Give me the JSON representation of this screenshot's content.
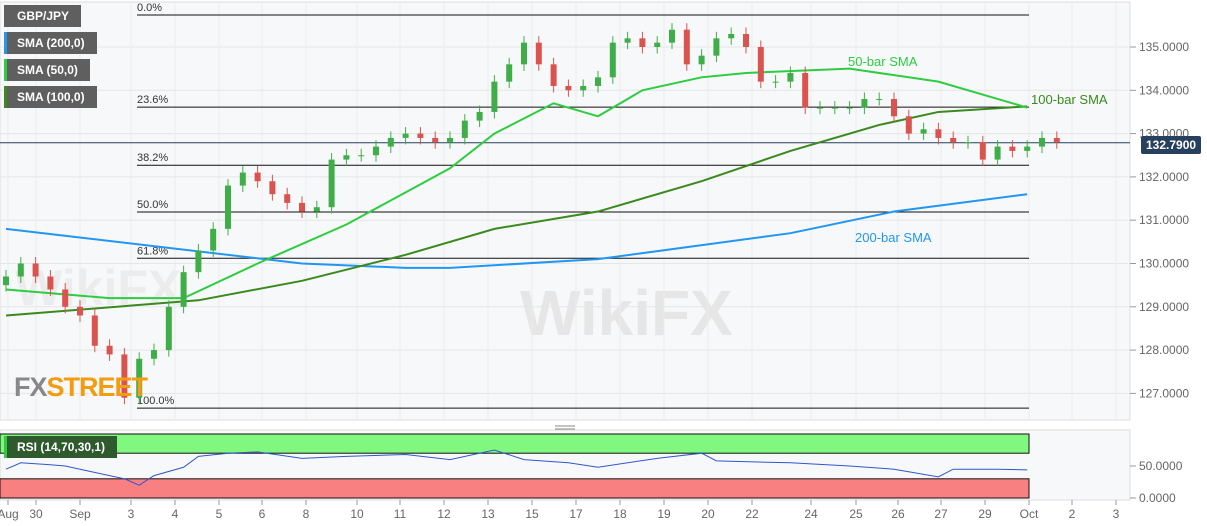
{
  "legend": [
    {
      "label": "GBP/JPY",
      "color": "#5f5f5f"
    },
    {
      "label": "SMA (200,0)",
      "color": "#2196f3"
    },
    {
      "label": "SMA (50,0)",
      "color": "#2ecc40"
    },
    {
      "label": "SMA (100,0)",
      "color": "#3a8a1e"
    }
  ],
  "rsi_label": "RSI (14,70,30,1)",
  "logo": "FXSTREET",
  "logo_parts": {
    "a": "FX",
    "b": "STREET"
  },
  "watermark": "WikiFX",
  "current_price": "132.7900",
  "annotations": {
    "sma50": "50-bar SMA",
    "sma100": "100-bar SMA",
    "sma200": "200-bar SMA"
  },
  "colors": {
    "up": "#3fae49",
    "down": "#d9534f",
    "sma200": "#2196f3",
    "sma50": "#2ecc40",
    "sma100": "#3a8a1e",
    "rsi": "#3355cc",
    "overbought": "#80f880",
    "oversold": "#f88080",
    "price_badge": "#27405f"
  },
  "chart_data": {
    "type": "candlestick",
    "title": "GBP/JPY",
    "ylim": [
      126.4,
      135.9
    ],
    "y_ticks": [
      "135.0000",
      "134.0000",
      "133.0000",
      "132.0000",
      "131.0000",
      "130.0000",
      "129.0000",
      "128.0000",
      "127.0000"
    ],
    "y_tick_values": [
      135,
      134,
      133,
      132,
      131,
      130,
      129,
      128,
      127
    ],
    "x_ticks": [
      "Aug",
      "30",
      "Sep",
      "3",
      "4",
      "5",
      "6",
      "8",
      "10",
      "11",
      "12",
      "13",
      "15",
      "17",
      "18",
      "19",
      "20",
      "22",
      "24",
      "25",
      "26",
      "27",
      "29",
      "Oct",
      "2",
      "3"
    ],
    "close": [
      129.7,
      130.0,
      129.7,
      129.4,
      129.0,
      128.8,
      128.1,
      127.9,
      126.9,
      127.8,
      128.0,
      129.0,
      129.8,
      130.3,
      130.8,
      131.8,
      132.1,
      131.9,
      131.6,
      131.4,
      131.2,
      131.3,
      132.4,
      132.5,
      132.5,
      132.7,
      132.9,
      133.0,
      132.9,
      132.8,
      132.9,
      133.3,
      133.5,
      134.2,
      134.6,
      135.1,
      134.6,
      134.1,
      134.0,
      134.1,
      134.3,
      135.1,
      135.2,
      135.0,
      135.1,
      135.4,
      134.6,
      134.8,
      135.2,
      135.3,
      135.0,
      134.2,
      134.2,
      134.4,
      133.6,
      133.6,
      133.6,
      133.6,
      133.8,
      133.8,
      133.4,
      133.0,
      133.1,
      132.9,
      132.8,
      132.8,
      132.4,
      132.7,
      132.6,
      132.7,
      132.9,
      132.8
    ],
    "fibonacci": [
      {
        "label": "0.0%",
        "price": 135.74
      },
      {
        "label": "23.6%",
        "price": 133.61
      },
      {
        "label": "38.2%",
        "price": 132.27
      },
      {
        "label": "50.0%",
        "price": 131.19
      },
      {
        "label": "61.8%",
        "price": 130.12
      },
      {
        "label": "100.0%",
        "price": 126.66
      }
    ],
    "sma200": [
      [
        0,
        130.8
      ],
      [
        20,
        130.0
      ],
      [
        27,
        129.9
      ],
      [
        30,
        129.9
      ],
      [
        40,
        130.1
      ],
      [
        53,
        130.7
      ],
      [
        60,
        131.2
      ],
      [
        69,
        131.6
      ]
    ],
    "sma50": [
      [
        0,
        129.4
      ],
      [
        7,
        129.2
      ],
      [
        12,
        129.2
      ],
      [
        17,
        130.0
      ],
      [
        23,
        130.9
      ],
      [
        30,
        132.2
      ],
      [
        33,
        133.0
      ],
      [
        37,
        133.7
      ],
      [
        40,
        133.4
      ],
      [
        43,
        134.0
      ],
      [
        47,
        134.3
      ],
      [
        50,
        134.4
      ],
      [
        57,
        134.5
      ],
      [
        63,
        134.2
      ],
      [
        69,
        133.6
      ]
    ],
    "sma100": [
      [
        0,
        128.8
      ],
      [
        13,
        129.15
      ],
      [
        20,
        129.6
      ],
      [
        27,
        130.2
      ],
      [
        33,
        130.8
      ],
      [
        40,
        131.2
      ],
      [
        47,
        131.9
      ],
      [
        53,
        132.6
      ],
      [
        59,
        133.2
      ],
      [
        63,
        133.5
      ],
      [
        69,
        133.63
      ]
    ],
    "rsi": {
      "ylim": [
        0,
        100
      ],
      "levels": [
        70,
        30
      ],
      "y_ticks": [
        "50.0000",
        "0.0000"
      ],
      "values": [
        [
          0,
          45
        ],
        [
          1,
          55
        ],
        [
          3,
          52
        ],
        [
          4,
          50
        ],
        [
          5,
          45
        ],
        [
          7,
          35
        ],
        [
          8,
          30
        ],
        [
          9,
          20
        ],
        [
          10,
          35
        ],
        [
          12,
          48
        ],
        [
          13,
          65
        ],
        [
          15,
          70
        ],
        [
          17,
          72
        ],
        [
          20,
          62
        ],
        [
          23,
          65
        ],
        [
          27,
          68
        ],
        [
          30,
          60
        ],
        [
          33,
          75
        ],
        [
          35,
          60
        ],
        [
          38,
          55
        ],
        [
          40,
          48
        ],
        [
          44,
          62
        ],
        [
          47,
          70
        ],
        [
          48,
          58
        ],
        [
          53,
          55
        ],
        [
          57,
          50
        ],
        [
          60,
          45
        ],
        [
          63,
          33
        ],
        [
          64,
          45
        ],
        [
          67,
          45
        ],
        [
          69,
          44
        ]
      ]
    }
  }
}
